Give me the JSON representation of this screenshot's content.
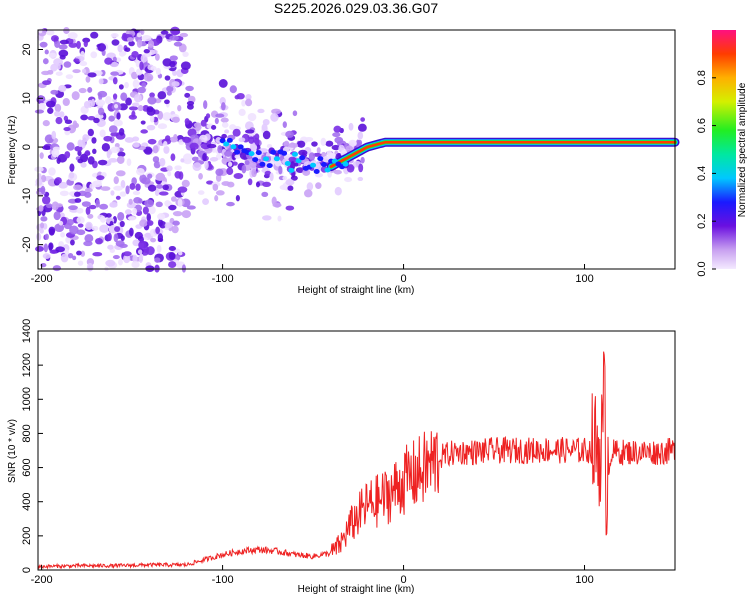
{
  "figure_title": "S225.2026.029.03.36.G07",
  "chart_data": [
    {
      "type": "heatmap",
      "title": "",
      "xlabel": "Height of straight line (km)",
      "ylabel": "Frequency (Hz)",
      "xlim": [
        -202,
        150
      ],
      "ylim": [
        -25,
        24
      ],
      "xticks": [
        -200,
        -100,
        0,
        100
      ],
      "yticks": [
        -20,
        -10,
        0,
        10,
        20
      ],
      "colorbar": {
        "label": "Normalized spectral amplitude",
        "range": [
          0,
          1
        ],
        "ticks": [
          0.0,
          0.2,
          0.4,
          0.6,
          0.8
        ]
      },
      "ridge": {
        "description_points_x": [
          -120,
          -100,
          -80,
          -60,
          -40,
          -30,
          -20,
          -10,
          0,
          10,
          20,
          40,
          60,
          80,
          95,
          100,
          110,
          120,
          150
        ],
        "frequency_hz": [
          1,
          0,
          -2,
          -3,
          -4,
          -2,
          0,
          1,
          1,
          1,
          1,
          1,
          1,
          1,
          1,
          1,
          1,
          1,
          1
        ]
      }
    },
    {
      "type": "line",
      "title": "",
      "xlabel": "Height of straight line (km)",
      "ylabel": "SNR (10 * v/v)",
      "xlim": [
        -202,
        150
      ],
      "ylim": [
        0,
        1400
      ],
      "xticks": [
        -200,
        -100,
        0,
        100
      ],
      "yticks": [
        0,
        200,
        400,
        600,
        800,
        1000,
        1200,
        1400
      ],
      "color": "#ee2222",
      "series": [
        {
          "name": "SNR",
          "x": [
            -202,
            -180,
            -160,
            -140,
            -120,
            -110,
            -100,
            -90,
            -80,
            -70,
            -60,
            -50,
            -40,
            -35,
            -30,
            -25,
            -20,
            -15,
            -10,
            -5,
            0,
            5,
            10,
            15,
            20,
            25,
            30,
            40,
            50,
            60,
            70,
            80,
            90,
            100,
            105,
            108,
            110,
            111,
            112,
            113,
            115,
            120,
            130,
            140,
            150
          ],
          "y": [
            20,
            25,
            25,
            30,
            30,
            60,
            90,
            110,
            120,
            110,
            90,
            80,
            100,
            150,
            250,
            320,
            380,
            400,
            430,
            470,
            520,
            550,
            580,
            620,
            660,
            680,
            690,
            690,
            700,
            700,
            700,
            705,
            700,
            700,
            700,
            720,
            750,
            1000,
            300,
            650,
            690,
            690,
            690,
            690,
            700
          ]
        }
      ]
    }
  ]
}
